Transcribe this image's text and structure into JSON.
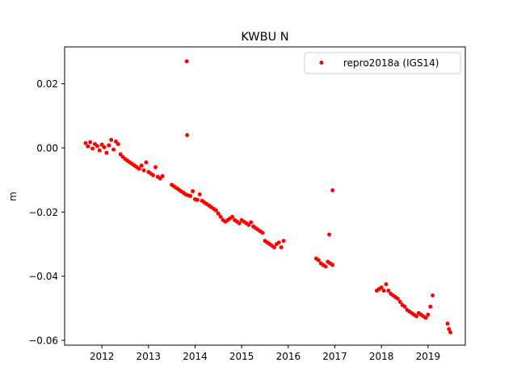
{
  "chart_data": {
    "type": "scatter",
    "title": "KWBU N",
    "xlabel": "",
    "ylabel": "m",
    "xlim": [
      2011.2,
      2019.8
    ],
    "ylim": [
      -0.0615,
      0.0315
    ],
    "xticks": [
      2012,
      2013,
      2014,
      2015,
      2016,
      2017,
      2018,
      2019
    ],
    "xtick_labels": [
      "2012",
      "2013",
      "2014",
      "2015",
      "2016",
      "2017",
      "2018",
      "2019"
    ],
    "yticks": [
      0.02,
      0.0,
      -0.02,
      -0.04,
      -0.06
    ],
    "ytick_labels": [
      "0.02",
      "0.00",
      "−0.02",
      "−0.04",
      "−0.06"
    ],
    "grid": false,
    "legend_position": "top-right",
    "series": [
      {
        "name": "repro2018a (IGS14)",
        "color": "#ff0000",
        "marker": "circle",
        "points": [
          [
            2011.65,
            0.0015
          ],
          [
            2011.7,
            0.0005
          ],
          [
            2011.75,
            0.0018
          ],
          [
            2011.8,
            -0.0002
          ],
          [
            2011.85,
            0.0012
          ],
          [
            2011.9,
            0.0006
          ],
          [
            2011.95,
            -0.0008
          ],
          [
            2012.0,
            0.001
          ],
          [
            2012.05,
            0.0002
          ],
          [
            2012.1,
            -0.0015
          ],
          [
            2012.15,
            0.0008
          ],
          [
            2012.2,
            0.0025
          ],
          [
            2012.25,
            -0.0005
          ],
          [
            2012.3,
            0.002
          ],
          [
            2012.35,
            0.0012
          ],
          [
            2012.4,
            -0.002
          ],
          [
            2012.45,
            -0.0028
          ],
          [
            2012.5,
            -0.0035
          ],
          [
            2012.55,
            -0.004
          ],
          [
            2012.6,
            -0.0045
          ],
          [
            2012.65,
            -0.005
          ],
          [
            2012.7,
            -0.0055
          ],
          [
            2012.75,
            -0.006
          ],
          [
            2012.8,
            -0.0065
          ],
          [
            2012.85,
            -0.0055
          ],
          [
            2012.9,
            -0.007
          ],
          [
            2012.95,
            -0.0045
          ],
          [
            2013.0,
            -0.0075
          ],
          [
            2013.05,
            -0.008
          ],
          [
            2013.1,
            -0.0085
          ],
          [
            2013.15,
            -0.006
          ],
          [
            2013.2,
            -0.009
          ],
          [
            2013.25,
            -0.0095
          ],
          [
            2013.3,
            -0.0088
          ],
          [
            2013.5,
            -0.0115
          ],
          [
            2013.55,
            -0.012
          ],
          [
            2013.6,
            -0.0125
          ],
          [
            2013.65,
            -0.013
          ],
          [
            2013.7,
            -0.0135
          ],
          [
            2013.75,
            -0.014
          ],
          [
            2013.8,
            -0.0145
          ],
          [
            2013.85,
            -0.0148
          ],
          [
            2013.9,
            -0.015
          ],
          [
            2013.95,
            -0.0135
          ],
          [
            2014.0,
            -0.016
          ],
          [
            2014.05,
            -0.0162
          ],
          [
            2014.1,
            -0.0145
          ],
          [
            2014.15,
            -0.0165
          ],
          [
            2014.2,
            -0.017
          ],
          [
            2014.25,
            -0.0175
          ],
          [
            2014.3,
            -0.018
          ],
          [
            2014.35,
            -0.0185
          ],
          [
            2014.4,
            -0.019
          ],
          [
            2014.45,
            -0.0195
          ],
          [
            2014.5,
            -0.0205
          ],
          [
            2014.55,
            -0.0215
          ],
          [
            2014.6,
            -0.0225
          ],
          [
            2014.65,
            -0.023
          ],
          [
            2014.7,
            -0.0225
          ],
          [
            2014.75,
            -0.022
          ],
          [
            2014.8,
            -0.0215
          ],
          [
            2014.85,
            -0.0225
          ],
          [
            2014.9,
            -0.023
          ],
          [
            2014.95,
            -0.0235
          ],
          [
            2015.0,
            -0.0225
          ],
          [
            2015.05,
            -0.023
          ],
          [
            2015.1,
            -0.0235
          ],
          [
            2015.15,
            -0.024
          ],
          [
            2015.2,
            -0.0232
          ],
          [
            2015.25,
            -0.0245
          ],
          [
            2015.3,
            -0.025
          ],
          [
            2015.35,
            -0.0255
          ],
          [
            2015.4,
            -0.026
          ],
          [
            2015.45,
            -0.0265
          ],
          [
            2015.5,
            -0.029
          ],
          [
            2015.55,
            -0.0295
          ],
          [
            2015.6,
            -0.03
          ],
          [
            2015.65,
            -0.0305
          ],
          [
            2015.7,
            -0.031
          ],
          [
            2015.75,
            -0.03
          ],
          [
            2015.8,
            -0.0295
          ],
          [
            2015.85,
            -0.031
          ],
          [
            2015.9,
            -0.029
          ],
          [
            2016.6,
            -0.0345
          ],
          [
            2016.65,
            -0.035
          ],
          [
            2016.7,
            -0.036
          ],
          [
            2016.75,
            -0.0365
          ],
          [
            2016.8,
            -0.037
          ],
          [
            2016.85,
            -0.0355
          ],
          [
            2016.9,
            -0.036
          ],
          [
            2016.95,
            -0.0365
          ],
          [
            2017.9,
            -0.0445
          ],
          [
            2017.95,
            -0.044
          ],
          [
            2018.0,
            -0.0435
          ],
          [
            2018.05,
            -0.0445
          ],
          [
            2018.1,
            -0.0425
          ],
          [
            2018.15,
            -0.0445
          ],
          [
            2018.2,
            -0.0455
          ],
          [
            2018.25,
            -0.046
          ],
          [
            2018.3,
            -0.0465
          ],
          [
            2018.35,
            -0.047
          ],
          [
            2018.4,
            -0.048
          ],
          [
            2018.45,
            -0.049
          ],
          [
            2018.5,
            -0.0495
          ],
          [
            2018.55,
            -0.0505
          ],
          [
            2018.6,
            -0.051
          ],
          [
            2018.65,
            -0.0515
          ],
          [
            2018.7,
            -0.052
          ],
          [
            2018.75,
            -0.0525
          ],
          [
            2018.8,
            -0.0515
          ],
          [
            2018.85,
            -0.052
          ],
          [
            2018.9,
            -0.0525
          ],
          [
            2018.95,
            -0.053
          ],
          [
            2019.0,
            -0.052
          ],
          [
            2019.05,
            -0.0495
          ],
          [
            2019.1,
            -0.046
          ],
          [
            2019.42,
            -0.0548
          ],
          [
            2019.45,
            -0.0565
          ],
          [
            2019.48,
            -0.0575
          ],
          [
            2013.82,
            0.027
          ],
          [
            2013.83,
            0.004
          ],
          [
            2016.88,
            -0.027
          ],
          [
            2016.95,
            -0.0132
          ]
        ]
      }
    ]
  }
}
